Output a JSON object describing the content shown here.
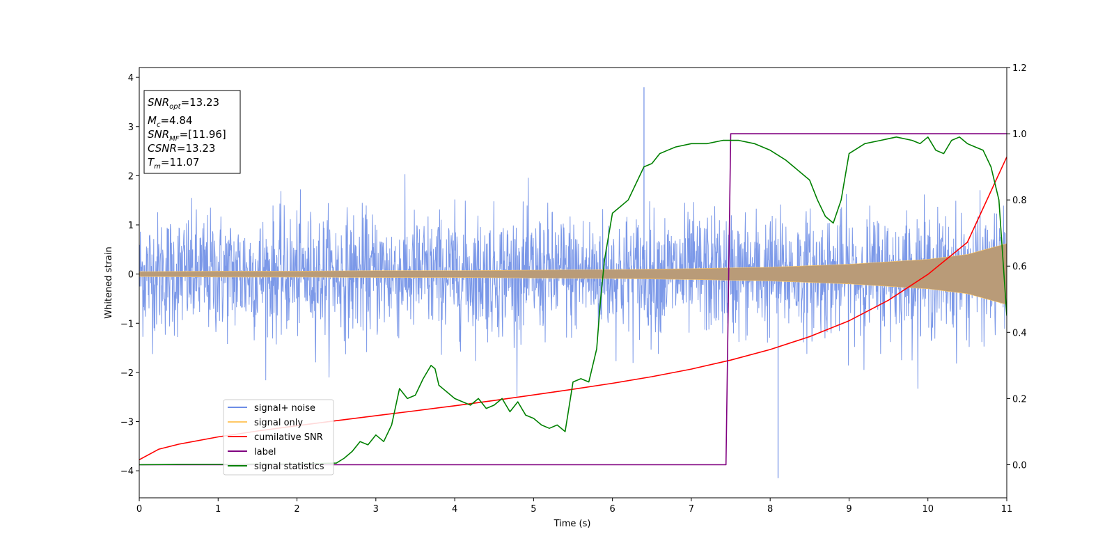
{
  "chart_data": {
    "type": "line",
    "xlabel": "Time (s)",
    "ylabel": "Whitened strain",
    "xlim": [
      0,
      11
    ],
    "ylim": [
      -4.55,
      4.2
    ],
    "y2lim": [
      -0.1,
      1.2
    ],
    "xticks": [
      "0",
      "1",
      "2",
      "3",
      "4",
      "5",
      "6",
      "7",
      "8",
      "9",
      "10",
      "11"
    ],
    "yticks": [
      "−4",
      "−3",
      "−2",
      "−1",
      "0",
      "1",
      "2",
      "3",
      "4"
    ],
    "y2ticks": [
      "0.0",
      "0.2",
      "0.4",
      "0.6",
      "0.8",
      "1.0",
      "1.2"
    ],
    "grid": false,
    "legend_position": "lower-left",
    "colors": {
      "signal_noise": "#6d8de6",
      "signal_only": "#ffc866",
      "signal_overlap": "#b99b78",
      "cumulative_snr": "#ff0000",
      "label": "#800080",
      "signal_statistics": "#008000"
    },
    "legend": [
      "signal+ noise",
      "signal only",
      "cumilative SNR",
      "label",
      "signal statistics"
    ],
    "series": [
      {
        "name": "signal+ noise",
        "axis": "left",
        "style": "noise-band",
        "typical_range": [
          -1.9,
          2.1
        ],
        "extremes": [
          3.8,
          -4.15
        ]
      },
      {
        "name": "signal only",
        "axis": "left",
        "style": "chirp-band",
        "amplitude": {
          "x": [
            0,
            1,
            2,
            3,
            4,
            5,
            6,
            7,
            8,
            9,
            10,
            10.5,
            11
          ],
          "y": [
            0.05,
            0.06,
            0.06,
            0.07,
            0.07,
            0.08,
            0.09,
            0.11,
            0.14,
            0.2,
            0.3,
            0.4,
            0.62
          ]
        }
      },
      {
        "name": "cumilative SNR",
        "axis": "right",
        "x": [
          0,
          0.25,
          0.5,
          1,
          1.5,
          2,
          2.5,
          3,
          3.5,
          4,
          4.5,
          5,
          5.5,
          6,
          6.5,
          7,
          7.5,
          8,
          8.5,
          9,
          9.5,
          10,
          10.5,
          11
        ],
        "y": [
          0.015,
          0.047,
          0.062,
          0.084,
          0.102,
          0.118,
          0.133,
          0.148,
          0.163,
          0.178,
          0.194,
          0.211,
          0.228,
          0.246,
          0.266,
          0.289,
          0.316,
          0.348,
          0.387,
          0.435,
          0.497,
          0.575,
          0.672,
          0.93
        ]
      },
      {
        "name": "label",
        "axis": "right",
        "x": [
          0,
          7.44,
          7.5,
          11
        ],
        "y": [
          0,
          0,
          1,
          1
        ]
      },
      {
        "name": "signal statistics",
        "axis": "right",
        "x": [
          0,
          0.5,
          1,
          1.5,
          2,
          2.5,
          2.6,
          2.7,
          2.8,
          2.9,
          3.0,
          3.1,
          3.2,
          3.3,
          3.4,
          3.5,
          3.6,
          3.7,
          3.75,
          3.8,
          3.9,
          4.0,
          4.1,
          4.2,
          4.3,
          4.4,
          4.5,
          4.6,
          4.7,
          4.8,
          4.9,
          5.0,
          5.1,
          5.2,
          5.3,
          5.4,
          5.5,
          5.6,
          5.7,
          5.8,
          5.85,
          5.9,
          6.0,
          6.1,
          6.2,
          6.3,
          6.4,
          6.5,
          6.6,
          6.7,
          6.8,
          7.0,
          7.2,
          7.4,
          7.6,
          7.8,
          8.0,
          8.2,
          8.4,
          8.5,
          8.6,
          8.7,
          8.8,
          8.9,
          9.0,
          9.2,
          9.4,
          9.6,
          9.8,
          9.9,
          10.0,
          10.1,
          10.2,
          10.3,
          10.4,
          10.5,
          10.6,
          10.7,
          10.8,
          10.9,
          11.0
        ],
        "y": [
          0.0,
          0.001,
          0.001,
          0.002,
          0.002,
          0.005,
          0.02,
          0.04,
          0.07,
          0.06,
          0.09,
          0.07,
          0.12,
          0.23,
          0.2,
          0.21,
          0.26,
          0.3,
          0.29,
          0.24,
          0.22,
          0.2,
          0.19,
          0.18,
          0.2,
          0.17,
          0.18,
          0.2,
          0.16,
          0.19,
          0.15,
          0.14,
          0.12,
          0.11,
          0.12,
          0.1,
          0.25,
          0.26,
          0.25,
          0.35,
          0.5,
          0.62,
          0.76,
          0.78,
          0.8,
          0.85,
          0.9,
          0.91,
          0.94,
          0.95,
          0.96,
          0.97,
          0.97,
          0.98,
          0.98,
          0.97,
          0.95,
          0.92,
          0.88,
          0.86,
          0.8,
          0.75,
          0.73,
          0.8,
          0.94,
          0.97,
          0.98,
          0.99,
          0.98,
          0.97,
          0.99,
          0.95,
          0.94,
          0.98,
          0.99,
          0.97,
          0.96,
          0.95,
          0.9,
          0.8,
          0.45
        ]
      }
    ]
  },
  "info_box": {
    "snr_opt": {
      "base": "SNR",
      "sub": "opt",
      "value": "=13.23"
    },
    "mc": {
      "base": "M",
      "sub": "c",
      "value": "=4.84"
    },
    "snr_mf": {
      "base": "SNR",
      "sub": "MF",
      "value": "=[11.96]"
    },
    "csnr": {
      "base": "CSNR",
      "value": "=13.23"
    },
    "tm": {
      "base": "T",
      "sub": "m",
      "value": "=11.07"
    }
  }
}
